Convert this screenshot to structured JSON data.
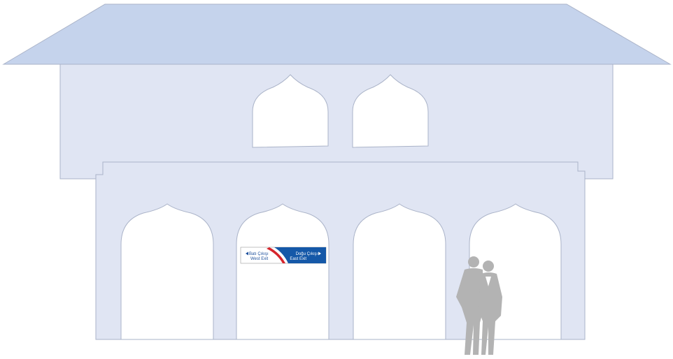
{
  "sign": {
    "west": {
      "tr": "Batı Çıkışı",
      "en": "West Exit"
    },
    "east": {
      "tr": "Doğu Çıkışı",
      "en": "East Exit"
    }
  }
}
